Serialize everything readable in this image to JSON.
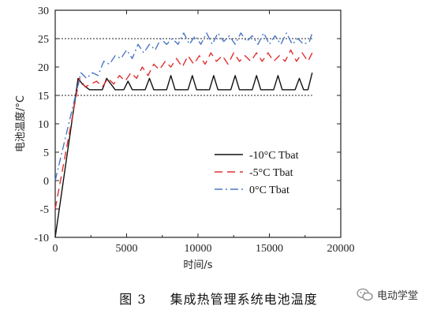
{
  "caption": {
    "figure": "图 3",
    "title": "集成热管理系统电池温度"
  },
  "watermark": {
    "text": "电动学堂"
  },
  "chart_data": {
    "type": "line",
    "title": "",
    "xlabel": "时间/s",
    "ylabel": "电池温度/°C",
    "xlim": [
      0,
      20000
    ],
    "ylim": [
      -10,
      30
    ],
    "xticks": [
      0,
      5000,
      10000,
      15000,
      20000
    ],
    "yticks": [
      -10,
      -5,
      0,
      5,
      10,
      15,
      20,
      25,
      30
    ],
    "grid": false,
    "legend_position": "lower-right",
    "reference_lines": [
      15,
      25
    ],
    "series": [
      {
        "name": "-10°C Tbat",
        "color": "#111111",
        "dash": "solid",
        "x": [
          0,
          1600,
          1900,
          2400,
          2700,
          3000,
          3300,
          3600,
          3900,
          4200,
          4500,
          4800,
          5100,
          5400,
          5700,
          6000,
          6300,
          6600,
          6900,
          7200,
          7500,
          7800,
          8100,
          8400,
          8700,
          9000,
          9300,
          9600,
          9900,
          10200,
          10500,
          10800,
          11100,
          11400,
          11700,
          12000,
          12300,
          12600,
          12900,
          13200,
          13500,
          13800,
          14100,
          14400,
          14700,
          15000,
          15300,
          15600,
          15900,
          16200,
          16500,
          16800,
          17100,
          17400,
          17700,
          18000
        ],
        "y": [
          -10,
          18,
          17,
          16,
          16,
          16,
          16,
          18,
          17,
          16,
          16,
          16,
          17.5,
          16,
          16,
          16,
          16,
          18,
          16,
          16,
          16,
          16,
          18.5,
          16,
          16,
          16,
          16,
          18.5,
          16,
          16,
          16,
          16,
          18.5,
          16,
          16,
          16,
          16,
          18.5,
          16,
          16,
          16,
          16,
          18.5,
          16,
          16,
          16,
          16,
          18.5,
          16,
          16,
          16,
          16,
          18,
          16,
          16,
          19
        ]
      },
      {
        "name": "-5°C Tbat",
        "color": "#e03030",
        "dash": "10,6",
        "x": [
          0,
          1700,
          2100,
          2500,
          2900,
          3300,
          3700,
          4100,
          4500,
          4900,
          5300,
          5700,
          6100,
          6500,
          6900,
          7300,
          7700,
          8100,
          8500,
          8900,
          9300,
          9700,
          10100,
          10500,
          10900,
          11300,
          11700,
          12100,
          12500,
          12900,
          13300,
          13700,
          14100,
          14500,
          14900,
          15300,
          15700,
          16100,
          16500,
          16900,
          17300,
          17700,
          18000
        ],
        "y": [
          -5,
          18,
          16.5,
          17,
          17.5,
          16.5,
          18,
          17,
          18.5,
          17.5,
          19,
          18,
          20,
          18.5,
          20.5,
          19.5,
          21,
          20,
          21.5,
          20,
          22,
          20.5,
          22,
          20.5,
          22.5,
          21,
          22,
          20.5,
          22.5,
          21,
          22,
          21,
          22.5,
          21,
          22.5,
          21,
          22,
          21,
          23,
          21,
          22.5,
          21,
          22.5
        ]
      },
      {
        "name": "0°C Tbat",
        "color": "#4a78c8",
        "dash": "10,4,2,4",
        "x": [
          0,
          1800,
          2200,
          2600,
          3000,
          3400,
          3800,
          4200,
          4600,
          5000,
          5400,
          5800,
          6200,
          6600,
          7000,
          7400,
          7800,
          8200,
          8600,
          9000,
          9400,
          9800,
          10200,
          10600,
          11000,
          11400,
          11800,
          12200,
          12600,
          13000,
          13400,
          13800,
          14200,
          14600,
          15000,
          15400,
          15800,
          16200,
          16600,
          17000,
          17400,
          17800,
          18000
        ],
        "y": [
          0,
          19,
          18,
          19,
          18.5,
          21,
          20.5,
          22,
          21.5,
          23,
          21.5,
          24,
          22.5,
          24,
          23,
          25,
          24,
          25,
          24,
          26,
          24,
          25.5,
          24,
          26,
          24,
          26,
          24.5,
          25.5,
          24,
          26,
          24.5,
          25.5,
          24,
          26,
          24,
          25.5,
          24,
          26,
          24,
          25,
          24,
          24.5,
          26
        ]
      }
    ]
  }
}
